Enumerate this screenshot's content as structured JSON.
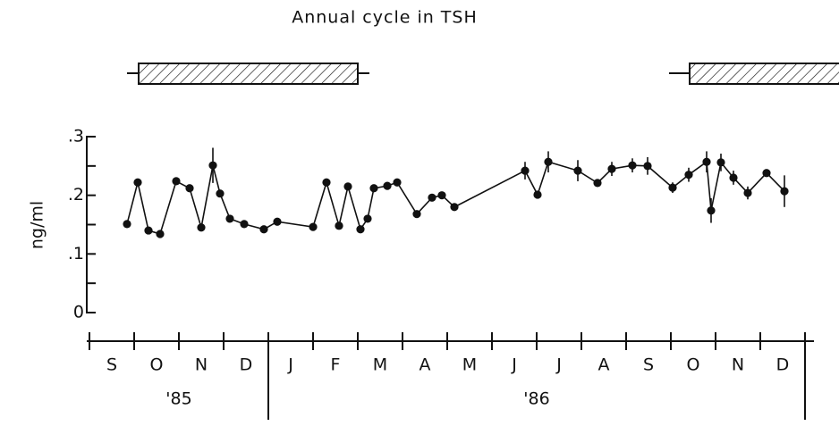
{
  "chart_data": {
    "type": "line",
    "title": "Annual cycle in TSH",
    "ylabel": "ng/ml",
    "categories": [
      "S",
      "O",
      "N",
      "D",
      "J",
      "F",
      "M",
      "A",
      "M",
      "J",
      "J",
      "A",
      "S",
      "O",
      "N",
      "D"
    ],
    "years": [
      "'85",
      "'86"
    ],
    "year_breaks": [
      4,
      16
    ],
    "xlim": [
      0,
      16
    ],
    "xticks": [
      0,
      1,
      2,
      3,
      4,
      5,
      6,
      7,
      8,
      9,
      10,
      11,
      12,
      13,
      14,
      15,
      16
    ],
    "ylim": [
      0,
      0.3
    ],
    "yticks": [
      0,
      {
        "value": 0.1,
        "label": ".1"
      },
      {
        "value": 0.2,
        "label": ".2"
      },
      {
        "value": 0.3,
        "label": ".3"
      }
    ],
    "yminor": [
      0.05,
      0.15,
      0.25
    ],
    "color": "#111111",
    "x": [
      0.84,
      1.08,
      1.32,
      1.58,
      1.94,
      2.24,
      2.5,
      2.76,
      2.92,
      3.14,
      3.46,
      3.9,
      4.2,
      5.0,
      5.3,
      5.58,
      5.78,
      6.06,
      6.22,
      6.36,
      6.66,
      6.88,
      7.32,
      7.66,
      7.88,
      8.16,
      9.74,
      10.02,
      10.26,
      10.92,
      11.36,
      11.68,
      12.14,
      12.48,
      13.04,
      13.4,
      13.8,
      13.9,
      14.12,
      14.4,
      14.72,
      15.14,
      15.54
    ],
    "values": [
      0.151,
      0.222,
      0.14,
      0.134,
      0.224,
      0.212,
      0.145,
      0.251,
      0.203,
      0.16,
      0.151,
      0.142,
      0.155,
      0.146,
      0.222,
      0.148,
      0.215,
      0.142,
      0.16,
      0.212,
      0.216,
      0.222,
      0.168,
      0.196,
      0.2,
      0.18,
      0.242,
      0.201,
      0.257,
      0.242,
      0.221,
      0.245,
      0.251,
      0.25,
      0.213,
      0.235,
      0.257,
      0.174,
      0.256,
      0.23,
      0.204,
      0.238,
      0.207
    ],
    "errors": [
      null,
      null,
      null,
      null,
      null,
      null,
      null,
      0.03,
      null,
      null,
      null,
      null,
      null,
      null,
      null,
      null,
      null,
      null,
      null,
      null,
      null,
      null,
      null,
      null,
      null,
      null,
      0.015,
      null,
      0.018,
      0.018,
      null,
      0.012,
      0.012,
      0.015,
      0.009,
      0.012,
      0.018,
      0.021,
      0.015,
      0.012,
      0.011,
      null,
      0.027
    ]
  }
}
